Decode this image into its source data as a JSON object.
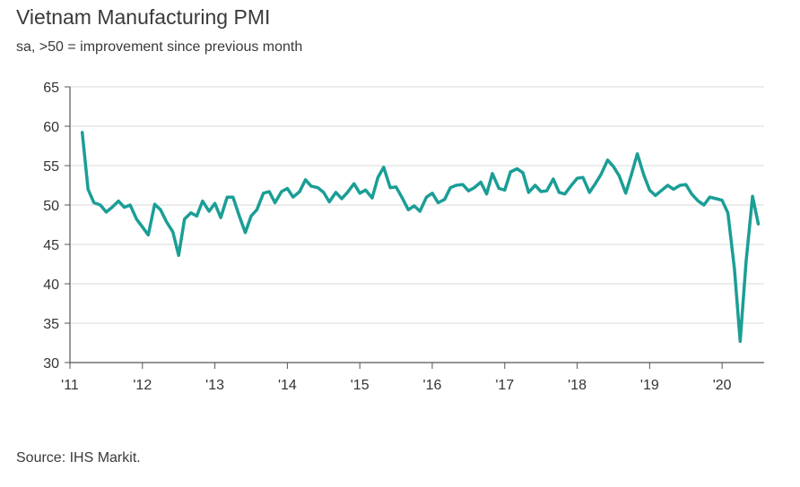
{
  "header": {
    "title": "Vietnam Manufacturing PMI",
    "subtitle": "sa, >50 = improvement since previous month"
  },
  "footer": {
    "source": "Source: IHS Markit."
  },
  "colors": {
    "line": "#1a9e96",
    "grid": "#d9d9d9",
    "axis": "#555555"
  },
  "chart_data": {
    "type": "line",
    "title": "Vietnam Manufacturing PMI",
    "subtitle": "sa, >50 = improvement since previous month",
    "xlabel": "",
    "ylabel": "",
    "ylim": [
      30,
      65
    ],
    "yticks": [
      30,
      35,
      40,
      45,
      50,
      55,
      60,
      65
    ],
    "xlim": [
      2011.0,
      2020.58
    ],
    "xticks": [
      {
        "value": 2011,
        "label": "'11"
      },
      {
        "value": 2012,
        "label": "'12"
      },
      {
        "value": 2013,
        "label": "'13"
      },
      {
        "value": 2014,
        "label": "'14"
      },
      {
        "value": 2015,
        "label": "'15"
      },
      {
        "value": 2016,
        "label": "'16"
      },
      {
        "value": 2017,
        "label": "'17"
      },
      {
        "value": 2018,
        "label": "'18"
      },
      {
        "value": 2019,
        "label": "'19"
      },
      {
        "value": 2020,
        "label": "'20"
      }
    ],
    "grid": true,
    "legend": "none",
    "series": [
      {
        "x": [
          2011.17,
          2011.25,
          2011.33,
          2011.42,
          2011.5,
          2011.58,
          2011.67,
          2011.75,
          2011.83,
          2011.92,
          2012.0,
          2012.08,
          2012.17,
          2012.25,
          2012.33,
          2012.42,
          2012.5,
          2012.58,
          2012.67,
          2012.75,
          2012.83,
          2012.92,
          2013.0,
          2013.08,
          2013.17,
          2013.25,
          2013.33,
          2013.42,
          2013.5,
          2013.58,
          2013.67,
          2013.75,
          2013.83,
          2013.92,
          2014.0,
          2014.08,
          2014.17,
          2014.25,
          2014.33,
          2014.42,
          2014.5,
          2014.58,
          2014.67,
          2014.75,
          2014.83,
          2014.92,
          2015.0,
          2015.08,
          2015.17,
          2015.25,
          2015.33,
          2015.42,
          2015.5,
          2015.58,
          2015.67,
          2015.75,
          2015.83,
          2015.92,
          2016.0,
          2016.08,
          2016.17,
          2016.25,
          2016.33,
          2016.42,
          2016.5,
          2016.58,
          2016.67,
          2016.75,
          2016.83,
          2016.92,
          2017.0,
          2017.08,
          2017.17,
          2017.25,
          2017.33,
          2017.42,
          2017.5,
          2017.58,
          2017.67,
          2017.75,
          2017.83,
          2017.92,
          2018.0,
          2018.08,
          2018.17,
          2018.25,
          2018.33,
          2018.42,
          2018.5,
          2018.58,
          2018.67,
          2018.75,
          2018.83,
          2018.92,
          2019.0,
          2019.08,
          2019.17,
          2019.25,
          2019.33,
          2019.42,
          2019.5,
          2019.58,
          2019.67,
          2019.75,
          2019.83,
          2019.92,
          2020.0,
          2020.08,
          2020.17,
          2020.25,
          2020.33,
          2020.42,
          2020.5
        ],
        "values": [
          59.2,
          52.0,
          50.3,
          50.0,
          49.1,
          49.7,
          50.5,
          49.7,
          50.0,
          48.2,
          47.2,
          46.2,
          50.1,
          49.4,
          47.9,
          46.6,
          43.6,
          48.2,
          49.0,
          48.6,
          50.5,
          49.2,
          50.2,
          48.4,
          51.0,
          51.0,
          48.8,
          46.5,
          48.6,
          49.4,
          51.5,
          51.7,
          50.3,
          51.7,
          52.1,
          51.0,
          51.7,
          53.2,
          52.4,
          52.2,
          51.6,
          50.4,
          51.6,
          50.8,
          51.6,
          52.7,
          51.5,
          51.9,
          50.9,
          53.5,
          54.8,
          52.2,
          52.3,
          51.0,
          49.4,
          49.9,
          49.2,
          51.0,
          51.5,
          50.3,
          50.7,
          52.2,
          52.5,
          52.6,
          51.8,
          52.2,
          52.9,
          51.4,
          54.0,
          52.1,
          51.9,
          54.2,
          54.6,
          54.1,
          51.6,
          52.5,
          51.7,
          51.8,
          53.3,
          51.6,
          51.4,
          52.5,
          53.4,
          53.5,
          51.6,
          52.7,
          53.9,
          55.7,
          54.9,
          53.7,
          51.5,
          53.9,
          56.5,
          53.8,
          51.9,
          51.2,
          51.9,
          52.5,
          52.0,
          52.5,
          52.6,
          51.4,
          50.5,
          50.0,
          51.0,
          50.8,
          50.6,
          49.0,
          41.9,
          32.7,
          42.7,
          51.1,
          47.6
        ]
      }
    ]
  }
}
